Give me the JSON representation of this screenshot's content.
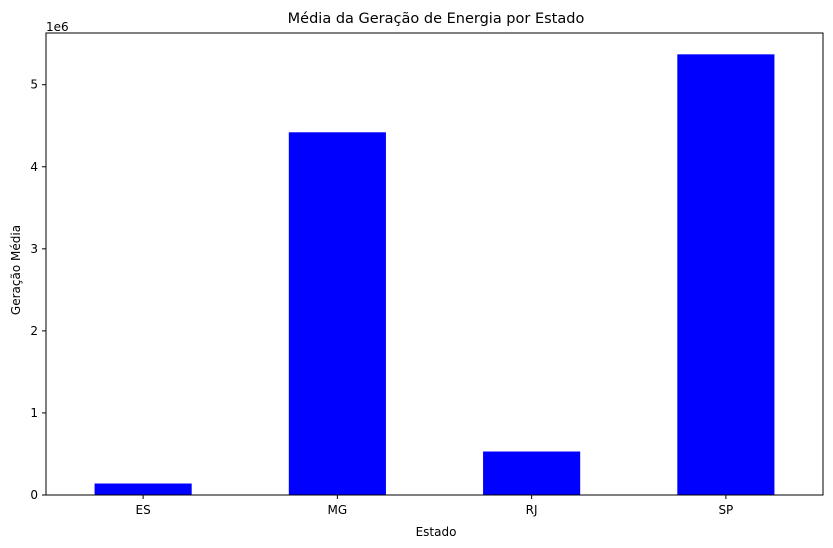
{
  "chart_data": {
    "type": "bar",
    "title": "Média da Geração de Energia por Estado",
    "xlabel": "Estado",
    "ylabel": "Geração Média",
    "y_multiplier_label": "1e6",
    "categories": [
      "ES",
      "MG",
      "RJ",
      "SP"
    ],
    "values": [
      140000,
      4420000,
      530000,
      5370000
    ],
    "ylim": [
      0,
      5630000
    ],
    "yticks": [
      0,
      1000000,
      2000000,
      3000000,
      4000000,
      5000000
    ],
    "ytick_labels": [
      "0",
      "1",
      "2",
      "3",
      "4",
      "5"
    ],
    "bar_color": "#0000ff",
    "grid": false,
    "legend": "none"
  }
}
